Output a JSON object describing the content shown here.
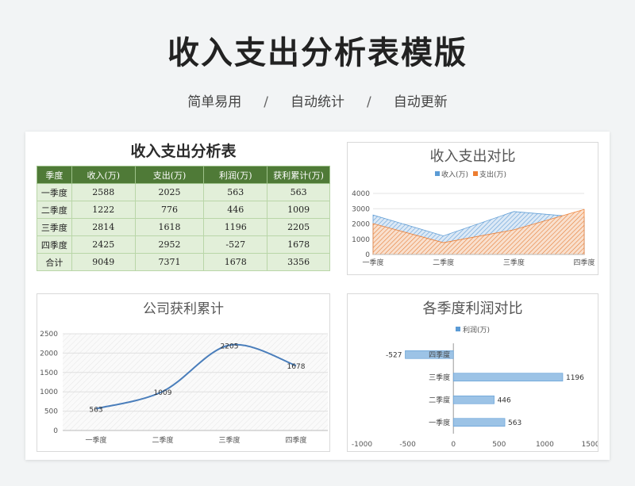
{
  "page": {
    "title": "收入支出分析表模版",
    "taglines": [
      "简单易用",
      "/",
      "自动统计",
      "/",
      "自动更新"
    ]
  },
  "table": {
    "title": "收入支出分析表",
    "headers": [
      "季度",
      "收入(万)",
      "支出(万)",
      "利润(万)",
      "获利累计(万)"
    ],
    "rows": [
      [
        "一季度",
        "2588",
        "2025",
        "563",
        "563"
      ],
      [
        "二季度",
        "1222",
        "776",
        "446",
        "1009"
      ],
      [
        "三季度",
        "2814",
        "1618",
        "1196",
        "2205"
      ],
      [
        "四季度",
        "2425",
        "2952",
        "-527",
        "1678"
      ],
      [
        "合计",
        "9049",
        "7371",
        "1678",
        "3356"
      ]
    ]
  },
  "chart_data": [
    {
      "type": "area",
      "title": "收入支出对比",
      "categories": [
        "一季度",
        "二季度",
        "三季度",
        "四季度"
      ],
      "series": [
        {
          "name": "收入(万)",
          "values": [
            2588,
            1222,
            2814,
            2425
          ],
          "color": "#5b9bd5"
        },
        {
          "name": "支出(万)",
          "values": [
            2025,
            776,
            1618,
            2952
          ],
          "color": "#ed7d31"
        }
      ],
      "ylim": [
        0,
        4000
      ],
      "yticks": [
        "0",
        "1000",
        "2000",
        "3000",
        "4000"
      ],
      "legend": "top",
      "grid": true
    },
    {
      "type": "line",
      "title": "公司获利累计",
      "categories": [
        "一季度",
        "二季度",
        "三季度",
        "四季度"
      ],
      "series": [
        {
          "values": [
            563,
            1009,
            2205,
            1678
          ],
          "color": "#4a7ebb"
        }
      ],
      "data_labels": [
        "563",
        "1009",
        "2205",
        "1678"
      ],
      "ylim": [
        0,
        2500
      ],
      "yticks": [
        "0",
        "500",
        "1000",
        "1500",
        "2000",
        "2500"
      ],
      "grid": true
    },
    {
      "type": "bar",
      "orientation": "horizontal",
      "title": "各季度利润对比",
      "categories": [
        "一季度",
        "二季度",
        "三季度",
        "四季度"
      ],
      "series": [
        {
          "name": "利润(万)",
          "values": [
            563,
            446,
            1196,
            -527
          ],
          "color": "#5b9bd5"
        }
      ],
      "data_labels": [
        "563",
        "446",
        "1196",
        "-527"
      ],
      "xlim": [
        -1000,
        1500
      ],
      "xticks": [
        "-1000",
        "-500",
        "0",
        "500",
        "1000",
        "1500"
      ],
      "legend": "top"
    }
  ]
}
